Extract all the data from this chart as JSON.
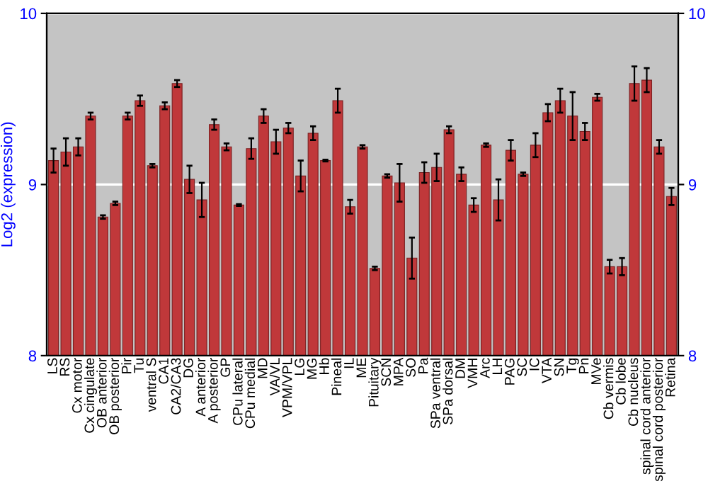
{
  "chart_data": {
    "type": "bar",
    "ylabel": "Log2 (expression)",
    "categories": [
      "LS",
      "RS",
      "Cx motor",
      "Cx cingulate",
      "OB anterior",
      "OB posterior",
      "Pir",
      "Tu",
      "ventral S",
      "CA1",
      "CA2/CA3",
      "DG",
      "A anterior",
      "A posterior",
      "GP",
      "CPu lateral",
      "CPu medial",
      "MD",
      "VA/VL",
      "VPM/VPL",
      "LG",
      "MG",
      "Hb",
      "Pineal",
      "IL",
      "ME",
      "Pituitary",
      "SCN",
      "MPA",
      "SO",
      "Pa",
      "SPa ventral",
      "SPa dorsal",
      "DM",
      "VMH",
      "Arc",
      "LH",
      "PAG",
      "SC",
      "IC",
      "VTA",
      "SN",
      "Tg",
      "Pn",
      "MVe",
      "Cb vermis",
      "Cb lobe",
      "Cb nucleus",
      "spinal cord anterior",
      "spinal cord posterior",
      "Retina"
    ],
    "values": [
      9.14,
      9.19,
      9.22,
      9.4,
      8.81,
      8.89,
      9.4,
      9.49,
      9.11,
      9.46,
      9.59,
      9.03,
      8.91,
      9.35,
      9.22,
      8.88,
      9.21,
      9.4,
      9.25,
      9.33,
      9.05,
      9.3,
      9.14,
      9.49,
      8.87,
      9.22,
      8.51,
      9.05,
      9.01,
      8.57,
      9.07,
      9.1,
      9.32,
      9.06,
      8.88,
      9.23,
      8.91,
      9.2,
      9.06,
      9.23,
      9.42,
      9.49,
      9.4,
      9.31,
      9.51,
      8.52,
      8.52,
      9.59,
      9.61,
      9.22,
      8.93
    ],
    "errors": [
      0.07,
      0.08,
      0.05,
      0.02,
      0.01,
      0.01,
      0.02,
      0.03,
      0.01,
      0.02,
      0.02,
      0.08,
      0.1,
      0.03,
      0.02,
      0.005,
      0.06,
      0.04,
      0.07,
      0.03,
      0.09,
      0.04,
      0.005,
      0.07,
      0.04,
      0.01,
      0.01,
      0.01,
      0.11,
      0.12,
      0.06,
      0.08,
      0.02,
      0.04,
      0.04,
      0.01,
      0.12,
      0.06,
      0.01,
      0.07,
      0.05,
      0.07,
      0.14,
      0.05,
      0.02,
      0.04,
      0.05,
      0.1,
      0.07,
      0.04,
      0.05
    ],
    "color": "#c0383a",
    "ylim": [
      8,
      10
    ],
    "yticks": [
      8,
      9,
      10
    ],
    "y2lim": [
      8,
      10
    ],
    "y2ticks": [
      8,
      9,
      10
    ],
    "grid": "y"
  }
}
